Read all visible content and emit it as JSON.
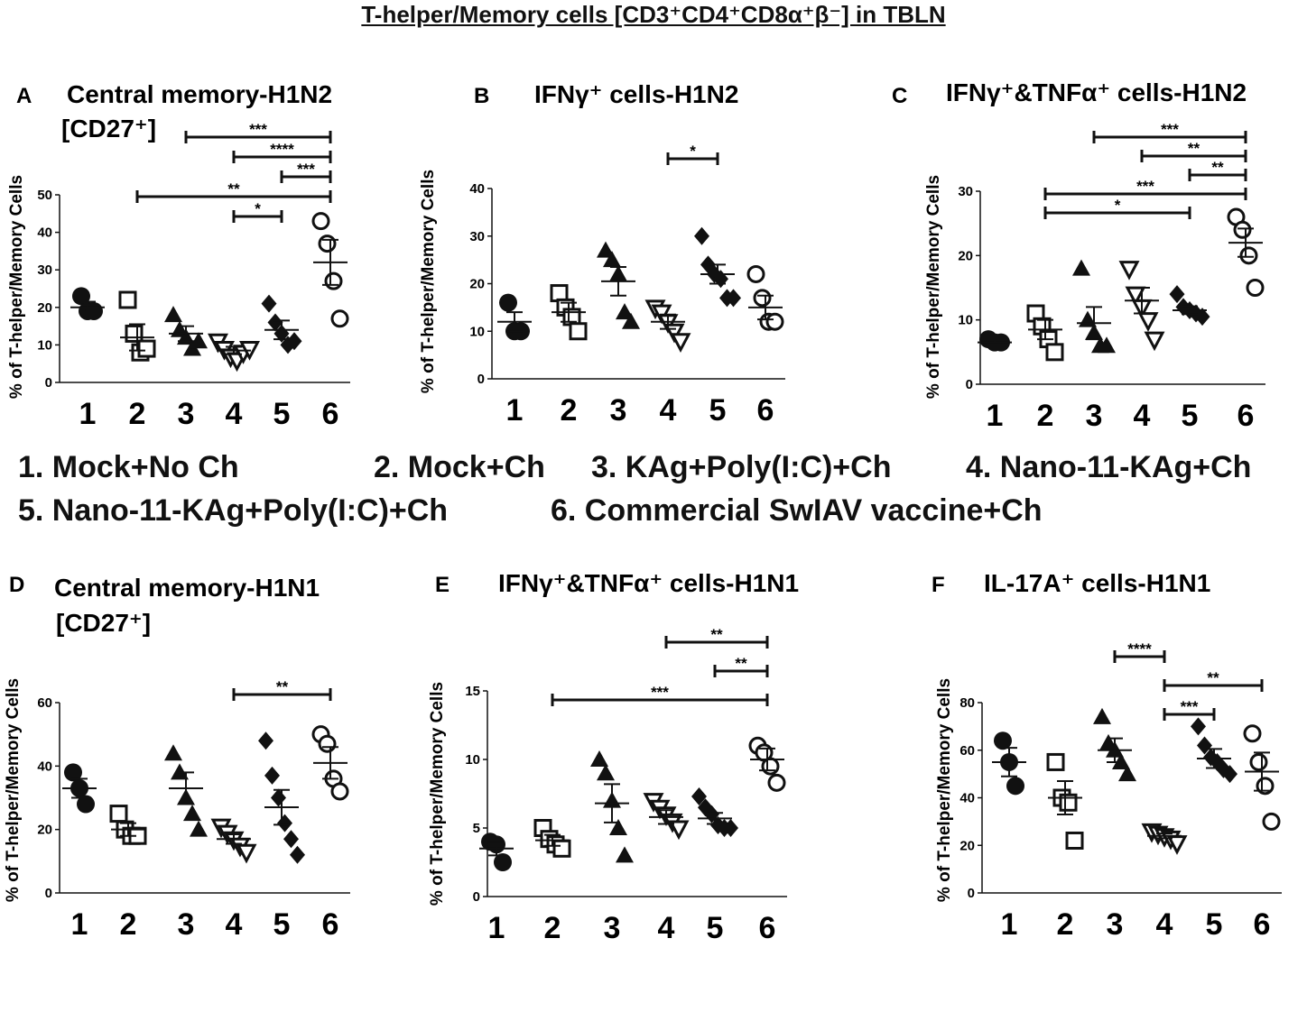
{
  "title": "T-helper/Memory cells [CD3⁺CD4⁺CD8α⁺β⁻] in TBLN",
  "legend": {
    "line1": [
      "1.  Mock+No Ch",
      "2. Mock+Ch",
      "3. KAg+Poly(I:C)+Ch",
      "4. Nano-11-KAg+Ch"
    ],
    "line2": [
      "5. Nano-11-KAg+Poly(I:C)+Ch",
      "6. Commercial SwIAV vaccine+Ch"
    ]
  },
  "chart_data": [
    {
      "type": "scatter",
      "panel": "A",
      "title": "Central memory-H1N2",
      "subtitle": "[CD27⁺]",
      "ylabel": "% of T-helper/Memory Cells",
      "categories": [
        "1",
        "2",
        "3",
        "4",
        "5",
        "6"
      ],
      "ylim": [
        0,
        50
      ],
      "yticks": [
        0,
        10,
        20,
        30,
        40,
        50
      ],
      "groups": [
        {
          "marker": "circle-filled",
          "values": [
            23,
            19,
            19
          ],
          "mean": 20,
          "sem": 1.5
        },
        {
          "marker": "square-open",
          "values": [
            22,
            13,
            8,
            9
          ],
          "mean": 12,
          "sem": 3.5
        },
        {
          "marker": "triangle-filled",
          "values": [
            18,
            14,
            12,
            9,
            11
          ],
          "mean": 13,
          "sem": 2
        },
        {
          "marker": "triangle-open",
          "values": [
            11,
            9,
            7,
            6,
            8,
            9
          ],
          "mean": 8.5,
          "sem": 1
        },
        {
          "marker": "diamond-filled",
          "values": [
            21,
            16,
            13,
            10,
            11
          ],
          "mean": 14,
          "sem": 2.5
        },
        {
          "marker": "circle-open",
          "values": [
            43,
            37,
            27,
            17
          ],
          "mean": 32,
          "sem": 6
        }
      ],
      "significance": [
        {
          "from": 3,
          "to": 6,
          "label": "***"
        },
        {
          "from": 4,
          "to": 6,
          "label": "****"
        },
        {
          "from": 5,
          "to": 6,
          "label": "***"
        },
        {
          "from": 2,
          "to": 6,
          "label": "**"
        },
        {
          "from": 4,
          "to": 5,
          "label": "*"
        }
      ]
    },
    {
      "type": "scatter",
      "panel": "B",
      "title": "IFNγ⁺ cells-H1N2",
      "ylabel": "% of T-helper/Memory Cells",
      "categories": [
        "1",
        "2",
        "3",
        "4",
        "5",
        "6"
      ],
      "ylim": [
        0,
        40
      ],
      "yticks": [
        0,
        10,
        20,
        30,
        40
      ],
      "groups": [
        {
          "marker": "circle-filled",
          "values": [
            16,
            10,
            10
          ],
          "mean": 12,
          "sem": 2
        },
        {
          "marker": "square-open",
          "values": [
            18,
            15,
            13,
            10
          ],
          "mean": 14,
          "sem": 2
        },
        {
          "marker": "triangle-filled",
          "values": [
            27,
            25,
            22,
            14,
            12
          ],
          "mean": 20.5,
          "sem": 3
        },
        {
          "marker": "triangle-open",
          "values": [
            15,
            14,
            12,
            10,
            8
          ],
          "mean": 12,
          "sem": 1.5
        },
        {
          "marker": "diamond-filled",
          "values": [
            30,
            24,
            22,
            21,
            17,
            17
          ],
          "mean": 22,
          "sem": 2
        },
        {
          "marker": "circle-open",
          "values": [
            22,
            17,
            12,
            12
          ],
          "mean": 15,
          "sem": 2.5
        }
      ],
      "significance": [
        {
          "from": 4,
          "to": 5,
          "label": "*"
        }
      ]
    },
    {
      "type": "scatter",
      "panel": "C",
      "title": "IFNγ⁺&TNFα⁺ cells-H1N2",
      "ylabel": "% of T-helper/Memory Cells",
      "categories": [
        "1",
        "2",
        "3",
        "4",
        "5",
        "6"
      ],
      "ylim": [
        0,
        30
      ],
      "yticks": [
        0,
        10,
        20,
        30
      ],
      "groups": [
        {
          "marker": "circle-filled",
          "values": [
            7,
            6.5,
            6.5
          ],
          "mean": 6.5,
          "sem": 0.3
        },
        {
          "marker": "square-open",
          "values": [
            11,
            9,
            7,
            5
          ],
          "mean": 8.5,
          "sem": 1.5
        },
        {
          "marker": "triangle-filled",
          "values": [
            18,
            10,
            8,
            6,
            6
          ],
          "mean": 9.5,
          "sem": 2.5
        },
        {
          "marker": "triangle-open",
          "values": [
            18,
            14,
            12,
            10,
            7
          ],
          "mean": 13,
          "sem": 2
        },
        {
          "marker": "diamond-filled",
          "values": [
            14,
            12,
            11.5,
            11,
            10.5
          ],
          "mean": 11.5,
          "sem": 0.6
        },
        {
          "marker": "circle-open",
          "values": [
            26,
            24,
            20,
            15
          ],
          "mean": 22,
          "sem": 2.2
        }
      ],
      "significance": [
        {
          "from": 3,
          "to": 6,
          "label": "***"
        },
        {
          "from": 4,
          "to": 6,
          "label": "**"
        },
        {
          "from": 5,
          "to": 6,
          "label": "**"
        },
        {
          "from": 2,
          "to": 6,
          "label": "***"
        },
        {
          "from": 2,
          "to": 5,
          "label": "*"
        }
      ]
    },
    {
      "type": "scatter",
      "panel": "D",
      "title": "Central memory-H1N1",
      "subtitle": "[CD27⁺]",
      "ylabel": "% of T-helper/Memory Cells",
      "categories": [
        "1",
        "2",
        "3",
        "4",
        "5",
        "6"
      ],
      "ylim": [
        0,
        60
      ],
      "yticks": [
        0,
        20,
        40,
        60
      ],
      "groups": [
        {
          "marker": "circle-filled",
          "values": [
            38,
            33,
            28
          ],
          "mean": 33,
          "sem": 3
        },
        {
          "marker": "square-open",
          "values": [
            25,
            20,
            18,
            18
          ],
          "mean": 20,
          "sem": 2
        },
        {
          "marker": "triangle-filled",
          "values": [
            44,
            38,
            30,
            25,
            20
          ],
          "mean": 33,
          "sem": 5
        },
        {
          "marker": "triangle-open",
          "values": [
            21,
            19,
            17,
            15,
            13
          ],
          "mean": 17,
          "sem": 1.5
        },
        {
          "marker": "diamond-filled",
          "values": [
            48,
            37,
            30,
            22,
            17,
            12
          ],
          "mean": 27,
          "sem": 5.5
        },
        {
          "marker": "circle-open",
          "values": [
            50,
            47,
            36,
            32
          ],
          "mean": 41,
          "sem": 5
        }
      ],
      "significance": [
        {
          "from": 4,
          "to": 6,
          "label": "**"
        }
      ]
    },
    {
      "type": "scatter",
      "panel": "E",
      "title": "IFNγ⁺&TNFα⁺ cells-H1N1",
      "ylabel": "% of T-helper/Memory Cells",
      "categories": [
        "1",
        "2",
        "3",
        "4",
        "5",
        "6"
      ],
      "ylim": [
        0,
        15
      ],
      "yticks": [
        0,
        5,
        10,
        15
      ],
      "groups": [
        {
          "marker": "circle-filled",
          "values": [
            4,
            3.8,
            2.5
          ],
          "mean": 3.5,
          "sem": 0.5
        },
        {
          "marker": "square-open",
          "values": [
            5,
            4.2,
            3.8,
            3.5
          ],
          "mean": 4.1,
          "sem": 0.4
        },
        {
          "marker": "triangle-filled",
          "values": [
            10,
            9,
            7,
            5,
            3
          ],
          "mean": 6.8,
          "sem": 1.4
        },
        {
          "marker": "triangle-open",
          "values": [
            7,
            6.5,
            6,
            5.5,
            5
          ],
          "mean": 5.8,
          "sem": 0.5
        },
        {
          "marker": "diamond-filled",
          "values": [
            7.3,
            6.5,
            6,
            5.2,
            5,
            5
          ],
          "mean": 5.7,
          "sem": 0.4
        },
        {
          "marker": "circle-open",
          "values": [
            11,
            10.5,
            9.5,
            8.3
          ],
          "mean": 10,
          "sem": 0.8
        }
      ],
      "significance": [
        {
          "from": 4,
          "to": 6,
          "label": "**"
        },
        {
          "from": 5,
          "to": 6,
          "label": "**"
        },
        {
          "from": 2,
          "to": 6,
          "label": "***"
        }
      ]
    },
    {
      "type": "scatter",
      "panel": "F",
      "title": "IL-17A⁺ cells-H1N1",
      "ylabel": "% of T-helper/Memory Cells",
      "categories": [
        "1",
        "2",
        "3",
        "4",
        "5",
        "6"
      ],
      "ylim": [
        0,
        80
      ],
      "yticks": [
        0,
        20,
        40,
        60,
        80
      ],
      "groups": [
        {
          "marker": "circle-filled",
          "values": [
            64,
            55,
            45
          ],
          "mean": 55,
          "sem": 6
        },
        {
          "marker": "square-open",
          "values": [
            55,
            40,
            38,
            22
          ],
          "mean": 40,
          "sem": 7
        },
        {
          "marker": "triangle-filled",
          "values": [
            74,
            63,
            60,
            55,
            50
          ],
          "mean": 60,
          "sem": 5
        },
        {
          "marker": "triangle-open",
          "values": [
            26,
            25,
            24,
            23,
            21
          ],
          "mean": 24,
          "sem": 1
        },
        {
          "marker": "diamond-filled",
          "values": [
            70,
            62,
            57,
            55,
            52,
            50
          ],
          "mean": 56.5,
          "sem": 4
        },
        {
          "marker": "circle-open",
          "values": [
            67,
            55,
            45,
            30
          ],
          "mean": 51,
          "sem": 8
        }
      ],
      "significance": [
        {
          "from": 3,
          "to": 4,
          "label": "****"
        },
        {
          "from": 4,
          "to": 6,
          "label": "**"
        },
        {
          "from": 4,
          "to": 5,
          "label": "***"
        }
      ]
    }
  ]
}
